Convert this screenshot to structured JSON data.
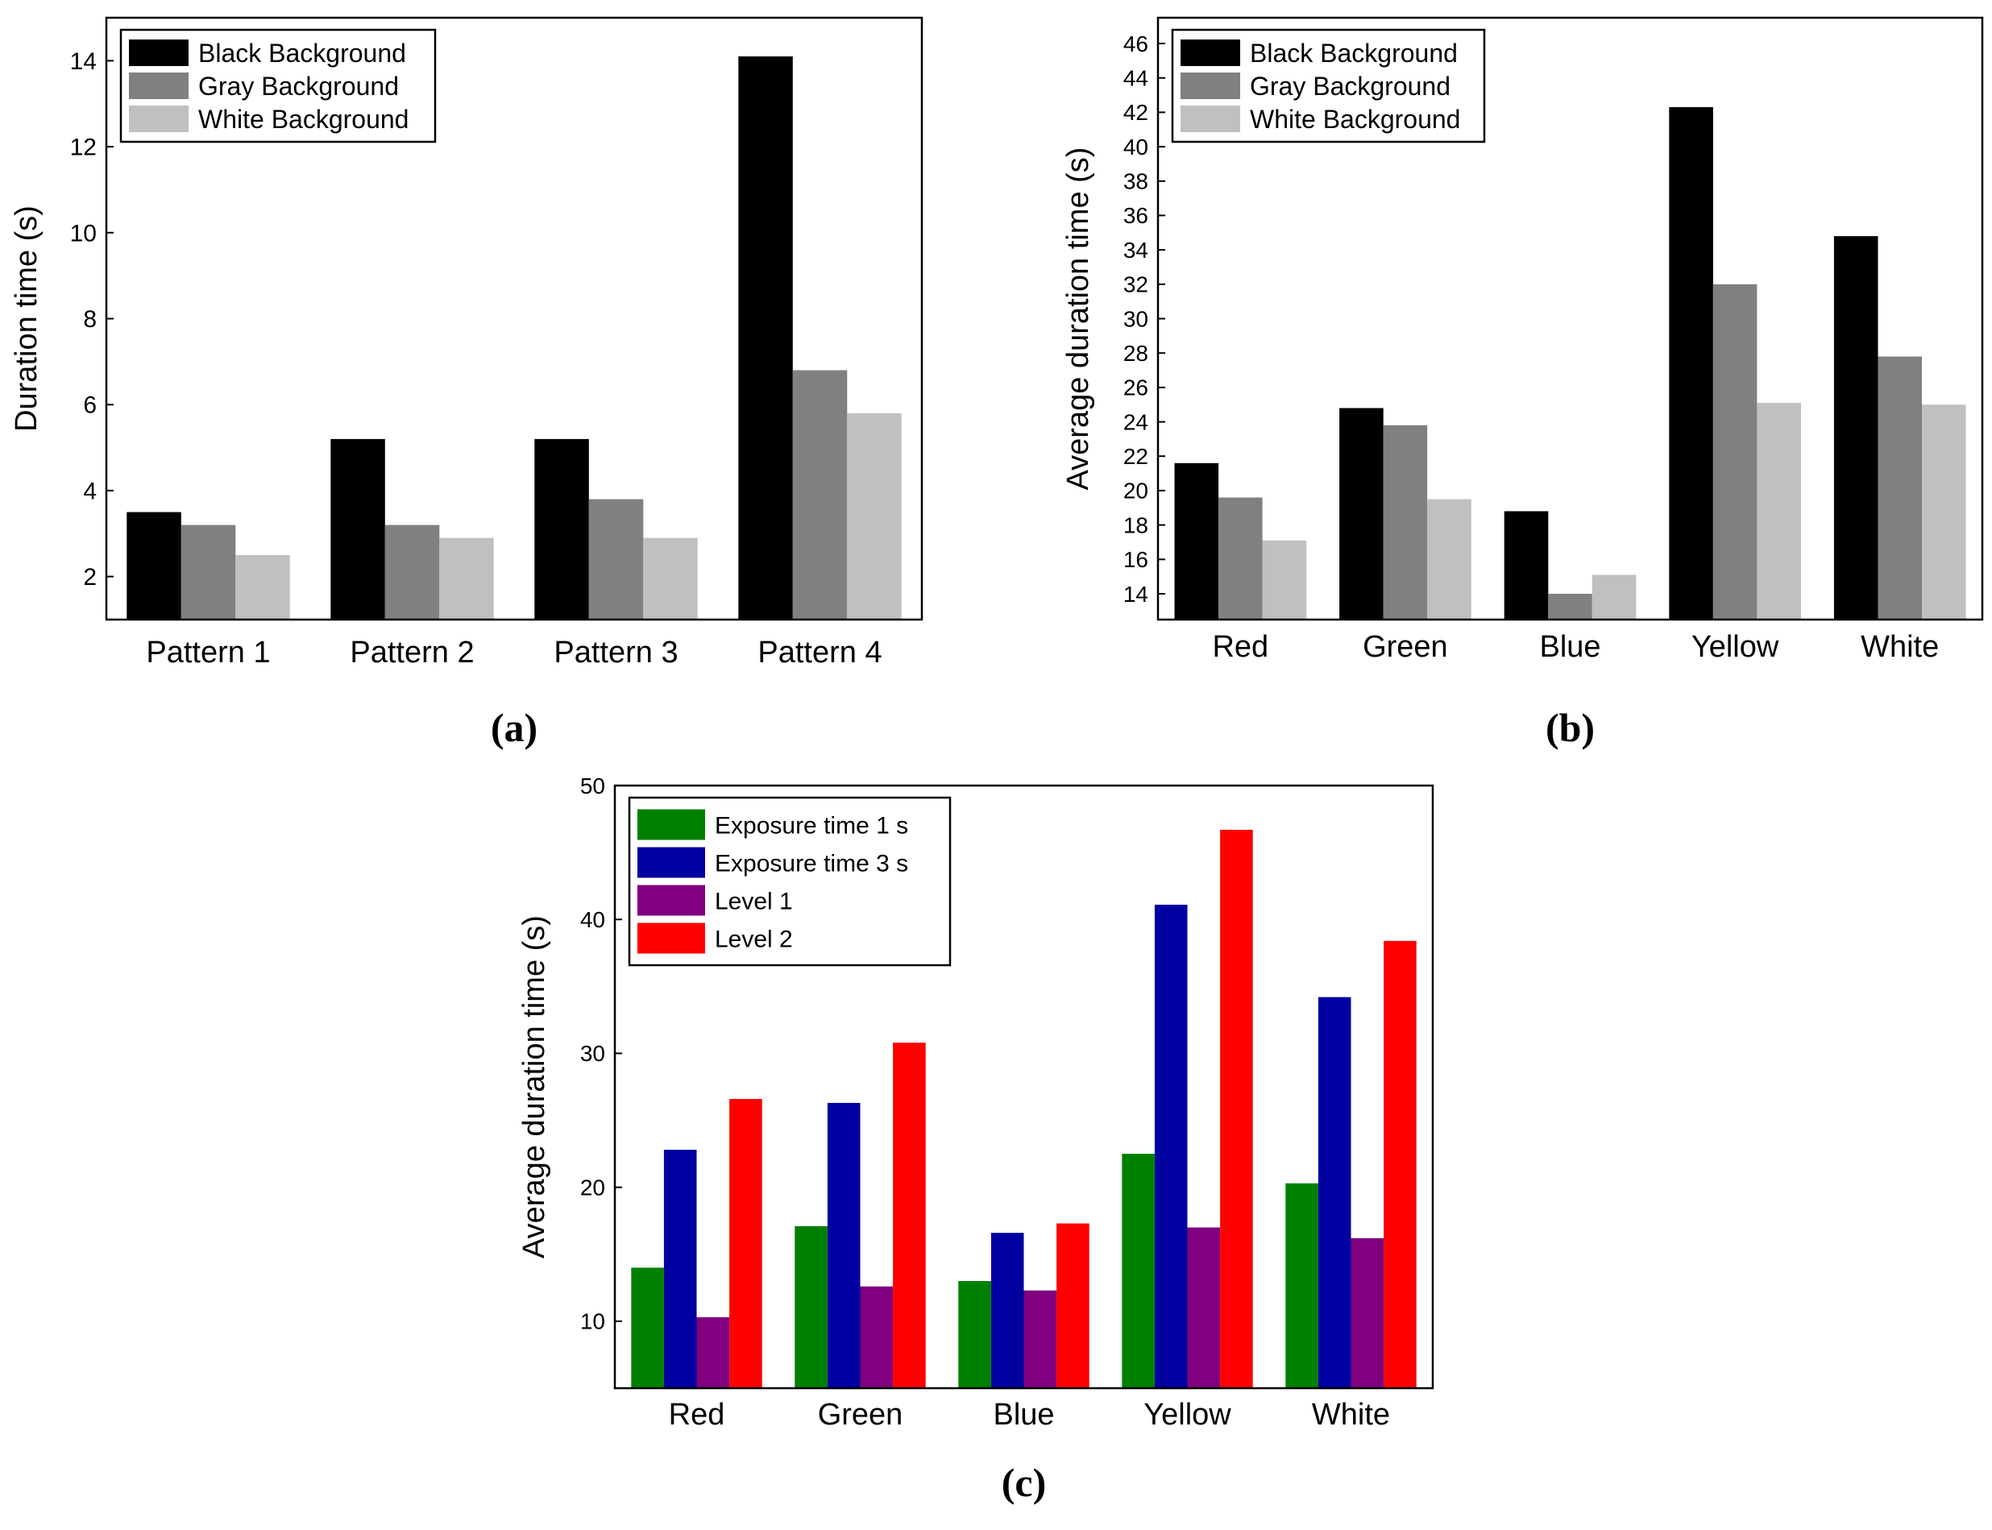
{
  "chart_data": [
    {
      "id": "a",
      "type": "bar",
      "panel_label": "(a)",
      "title": "",
      "xlabel": "",
      "ylabel": "Duration time (s)",
      "ylim": [
        1,
        15
      ],
      "yticks": [
        "2",
        "4",
        "6",
        "8",
        "10",
        "12",
        "14"
      ],
      "ytick_values": [
        2,
        4,
        6,
        8,
        10,
        12,
        14
      ],
      "categories": [
        "Pattern 1",
        "Pattern 2",
        "Pattern 3",
        "Pattern 4"
      ],
      "legend_position": "top-left",
      "series": [
        {
          "name": "Black Background",
          "color": "#000000",
          "values": [
            3.5,
            5.2,
            5.2,
            14.1
          ]
        },
        {
          "name": "Gray Background",
          "color": "#808080",
          "values": [
            3.2,
            3.2,
            3.8,
            6.8
          ]
        },
        {
          "name": "White Background",
          "color": "#c0c0c0",
          "values": [
            2.5,
            2.9,
            2.9,
            5.8
          ]
        }
      ]
    },
    {
      "id": "b",
      "type": "bar",
      "panel_label": "(b)",
      "title": "",
      "xlabel": "",
      "ylabel": "Average duration time (s)",
      "ylim": [
        12.5,
        47.5
      ],
      "yticks": [
        "14",
        "16",
        "18",
        "20",
        "22",
        "24",
        "26",
        "28",
        "30",
        "32",
        "34",
        "36",
        "38",
        "40",
        "42",
        "44",
        "46"
      ],
      "ytick_values": [
        14,
        16,
        18,
        20,
        22,
        24,
        26,
        28,
        30,
        32,
        34,
        36,
        38,
        40,
        42,
        44,
        46
      ],
      "categories": [
        "Red",
        "Green",
        "Blue",
        "Yellow",
        "White"
      ],
      "legend_position": "top-left",
      "series": [
        {
          "name": "Black Background",
          "color": "#000000",
          "values": [
            21.6,
            24.8,
            18.8,
            42.3,
            34.8
          ]
        },
        {
          "name": "Gray Background",
          "color": "#808080",
          "values": [
            19.6,
            23.8,
            14.0,
            32.0,
            27.8
          ]
        },
        {
          "name": "White Background",
          "color": "#c0c0c0",
          "values": [
            17.1,
            19.5,
            15.1,
            25.1,
            25.0
          ]
        }
      ]
    },
    {
      "id": "c",
      "type": "bar",
      "panel_label": "(c)",
      "title": "",
      "xlabel": "",
      "ylabel": "Average duration time (s)",
      "ylim": [
        5,
        50
      ],
      "yticks": [
        "10",
        "20",
        "30",
        "40",
        "50"
      ],
      "ytick_values": [
        10,
        20,
        30,
        40,
        50
      ],
      "categories": [
        "Red",
        "Green",
        "Blue",
        "Yellow",
        "White"
      ],
      "legend_position": "top-left",
      "series": [
        {
          "name": "Exposure time 1 s",
          "color": "#008000",
          "values": [
            14.0,
            17.1,
            13.0,
            22.5,
            20.3
          ]
        },
        {
          "name": "Exposure time 3 s",
          "color": "#0000a0",
          "values": [
            22.8,
            26.3,
            16.6,
            41.1,
            34.2
          ]
        },
        {
          "name": "Level 1",
          "color": "#800080",
          "values": [
            10.3,
            12.6,
            12.3,
            17.0,
            16.2
          ]
        },
        {
          "name": "Level 2",
          "color": "#ff0000",
          "values": [
            26.6,
            30.8,
            17.3,
            46.7,
            38.4
          ]
        }
      ]
    }
  ]
}
